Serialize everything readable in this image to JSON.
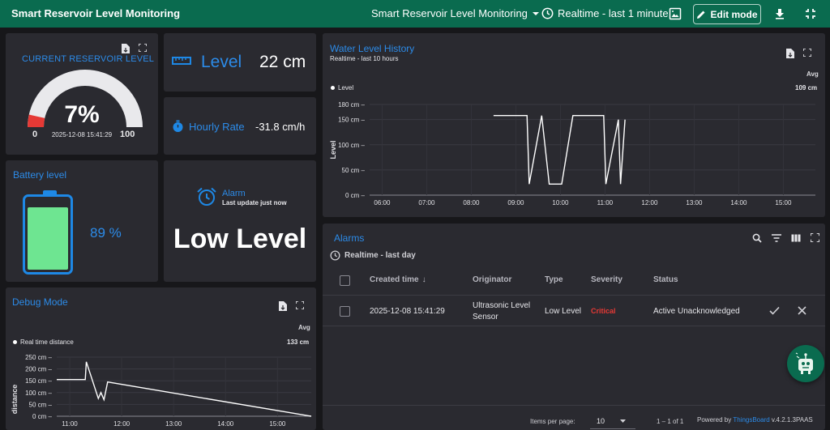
{
  "header": {
    "title": "Smart Reservoir Level Monitoring",
    "dashboard_select": "Smart Reservoir Level Monitoring",
    "timewindow": "Realtime - last 1 minute",
    "edit_label": "Edit mode"
  },
  "gauge": {
    "title": "CURRENT RESERVOIR LEVEL",
    "value": "7%",
    "value_num": 7,
    "timestamp": "2025-12-08 15:41:29",
    "min": "0",
    "max": "100"
  },
  "level": {
    "label": "Level",
    "value": "22 cm"
  },
  "hourly": {
    "label": "Hourly Rate",
    "value": "-31.8 cm/h"
  },
  "battery": {
    "title": "Battery level",
    "value": "89 %",
    "fraction": 0.89
  },
  "alarm_card": {
    "title": "Alarm",
    "subtitle": "Last update just now",
    "value": "Low Level"
  },
  "history": {
    "title": "Water Level History",
    "subtitle": "Realtime - last 10 hours",
    "legend": "Level",
    "avg_label": "Avg",
    "avg_value": "109 cm",
    "ylabel": "Level"
  },
  "debug": {
    "title": "Debug Mode",
    "legend": "Real time distance",
    "avg_label": "Avg",
    "avg_value": "133 cm",
    "ylabel": "distance"
  },
  "alarms": {
    "title": "Alarms",
    "timewindow": "Realtime - last day",
    "columns": [
      "Created time",
      "Originator",
      "Type",
      "Severity",
      "Status"
    ],
    "row": {
      "created": "2025-12-08 15:41:29",
      "originator_line1": "Ultrasonic Level",
      "originator_line2": "Sensor",
      "type": "Low Level",
      "severity": "Critical",
      "status": "Active Unacknowledged"
    },
    "items_per_page_label": "Items per page:",
    "items_per_page": "10",
    "range": "1 – 1 of 1",
    "powered_prefix": "Powered by ",
    "powered_brand": "ThingsBoard",
    "powered_version": " v.4.2.1.3PAAS"
  },
  "colors": {
    "accent": "#1e88e5",
    "header": "#0a6b4f",
    "critical": "#e53935",
    "battery": "#6ee591"
  },
  "chart_data": [
    {
      "type": "line",
      "title": "Water Level History",
      "ylabel": "Level",
      "y_ticks": [
        "0 cm",
        "50 cm",
        "100 cm",
        "150 cm",
        "180 cm"
      ],
      "x_ticks": [
        "06:00",
        "07:00",
        "08:00",
        "09:00",
        "10:00",
        "11:00",
        "12:00",
        "13:00",
        "14:00",
        "15:00"
      ],
      "ylim": [
        0,
        180
      ],
      "xlim_hours": [
        5.72,
        15.72
      ],
      "series": [
        {
          "name": "Level",
          "points": [
            [
              8.5,
              158
            ],
            [
              9.25,
              158
            ],
            [
              9.3,
              22
            ],
            [
              9.58,
              158
            ],
            [
              9.75,
              22
            ],
            [
              10.03,
              22
            ],
            [
              10.28,
              158
            ],
            [
              10.97,
              158
            ],
            [
              11.02,
              22
            ],
            [
              11.3,
              150
            ],
            [
              11.35,
              22
            ],
            [
              11.45,
              150
            ]
          ]
        }
      ]
    },
    {
      "type": "line",
      "title": "Debug Mode",
      "ylabel": "distance",
      "y_ticks": [
        "0 cm",
        "50 cm",
        "100 cm",
        "150 cm",
        "200 cm",
        "250 cm"
      ],
      "x_ticks": [
        "11:00",
        "12:00",
        "13:00",
        "14:00",
        "15:00"
      ],
      "ylim": [
        0,
        250
      ],
      "xlim_hours": [
        10.75,
        15.65
      ],
      "series": [
        {
          "name": "Real time distance",
          "points": [
            [
              10.75,
              155
            ],
            [
              11.3,
              155
            ],
            [
              11.32,
              230
            ],
            [
              11.55,
              75
            ],
            [
              11.6,
              100
            ],
            [
              11.66,
              70
            ],
            [
              11.73,
              145
            ],
            [
              15.65,
              0
            ]
          ]
        }
      ]
    }
  ]
}
